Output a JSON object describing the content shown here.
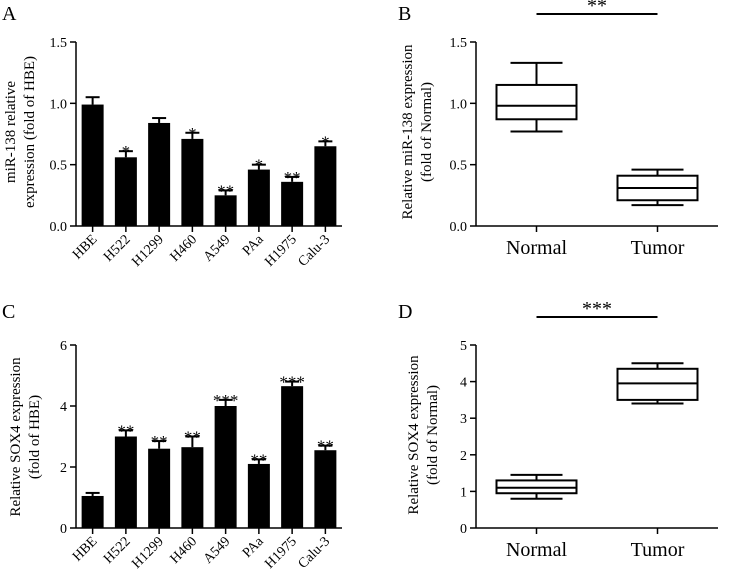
{
  "chart_data": [
    {
      "panel": "A",
      "type": "bar",
      "ylabel_lines": [
        "miR-138 relative",
        "expression (fold of HBE)"
      ],
      "ylim": [
        0,
        1.5
      ],
      "yticks": [
        0.0,
        0.5,
        1.0,
        1.5
      ],
      "ytick_labels": [
        "0.0",
        "0.5",
        "1.0",
        "1.5"
      ],
      "categories": [
        "HBE",
        "H522",
        "H1299",
        "H460",
        "A549",
        "PAa",
        "H1975",
        "Calu-3"
      ],
      "values": [
        0.99,
        0.56,
        0.84,
        0.71,
        0.25,
        0.46,
        0.36,
        0.65
      ],
      "errors": [
        0.06,
        0.05,
        0.04,
        0.05,
        0.04,
        0.04,
        0.04,
        0.04
      ],
      "annotations": [
        "",
        "*",
        "",
        "*",
        "**",
        "*",
        "**",
        "*"
      ]
    },
    {
      "panel": "B",
      "type": "box",
      "ylabel_lines": [
        "Relative miR-138 expression",
        "(fold of Normal)"
      ],
      "ylim": [
        0,
        1.5
      ],
      "yticks": [
        0.0,
        0.5,
        1.0,
        1.5
      ],
      "ytick_labels": [
        "0.0",
        "0.5",
        "1.0",
        "1.5"
      ],
      "categories": [
        "Normal",
        "Tumor"
      ],
      "boxes": [
        {
          "min": 0.77,
          "q1": 0.87,
          "median": 0.98,
          "q3": 1.15,
          "max": 1.33
        },
        {
          "min": 0.17,
          "q1": 0.21,
          "median": 0.31,
          "q3": 0.41,
          "max": 0.46
        }
      ],
      "significance": "**"
    },
    {
      "panel": "C",
      "type": "bar",
      "ylabel_lines": [
        "Relative SOX4 expression",
        "(fold of HBE)"
      ],
      "ylim": [
        0,
        6
      ],
      "yticks": [
        0,
        2,
        4,
        6
      ],
      "ytick_labels": [
        "0",
        "2",
        "4",
        "6"
      ],
      "categories": [
        "HBE",
        "H522",
        "H1299",
        "H460",
        "A549",
        "PAa",
        "H1975",
        "Calu-3"
      ],
      "values": [
        1.05,
        3.0,
        2.6,
        2.65,
        4.0,
        2.1,
        4.65,
        2.55
      ],
      "errors": [
        0.1,
        0.2,
        0.25,
        0.35,
        0.2,
        0.15,
        0.15,
        0.15
      ],
      "annotations": [
        "",
        "**",
        "**",
        "**",
        "***",
        "**",
        "***",
        "**"
      ]
    },
    {
      "panel": "D",
      "type": "box",
      "ylabel_lines": [
        "Relative SOX4 expression",
        "(fold of Normal)"
      ],
      "ylim": [
        0,
        5
      ],
      "yticks": [
        0,
        1,
        2,
        3,
        4,
        5
      ],
      "ytick_labels": [
        "0",
        "1",
        "2",
        "3",
        "4",
        "5"
      ],
      "categories": [
        "Normal",
        "Tumor"
      ],
      "boxes": [
        {
          "min": 0.8,
          "q1": 0.95,
          "median": 1.1,
          "q3": 1.3,
          "max": 1.45
        },
        {
          "min": 3.4,
          "q1": 3.5,
          "median": 3.95,
          "q3": 4.35,
          "max": 4.5
        }
      ],
      "significance": "***"
    }
  ]
}
